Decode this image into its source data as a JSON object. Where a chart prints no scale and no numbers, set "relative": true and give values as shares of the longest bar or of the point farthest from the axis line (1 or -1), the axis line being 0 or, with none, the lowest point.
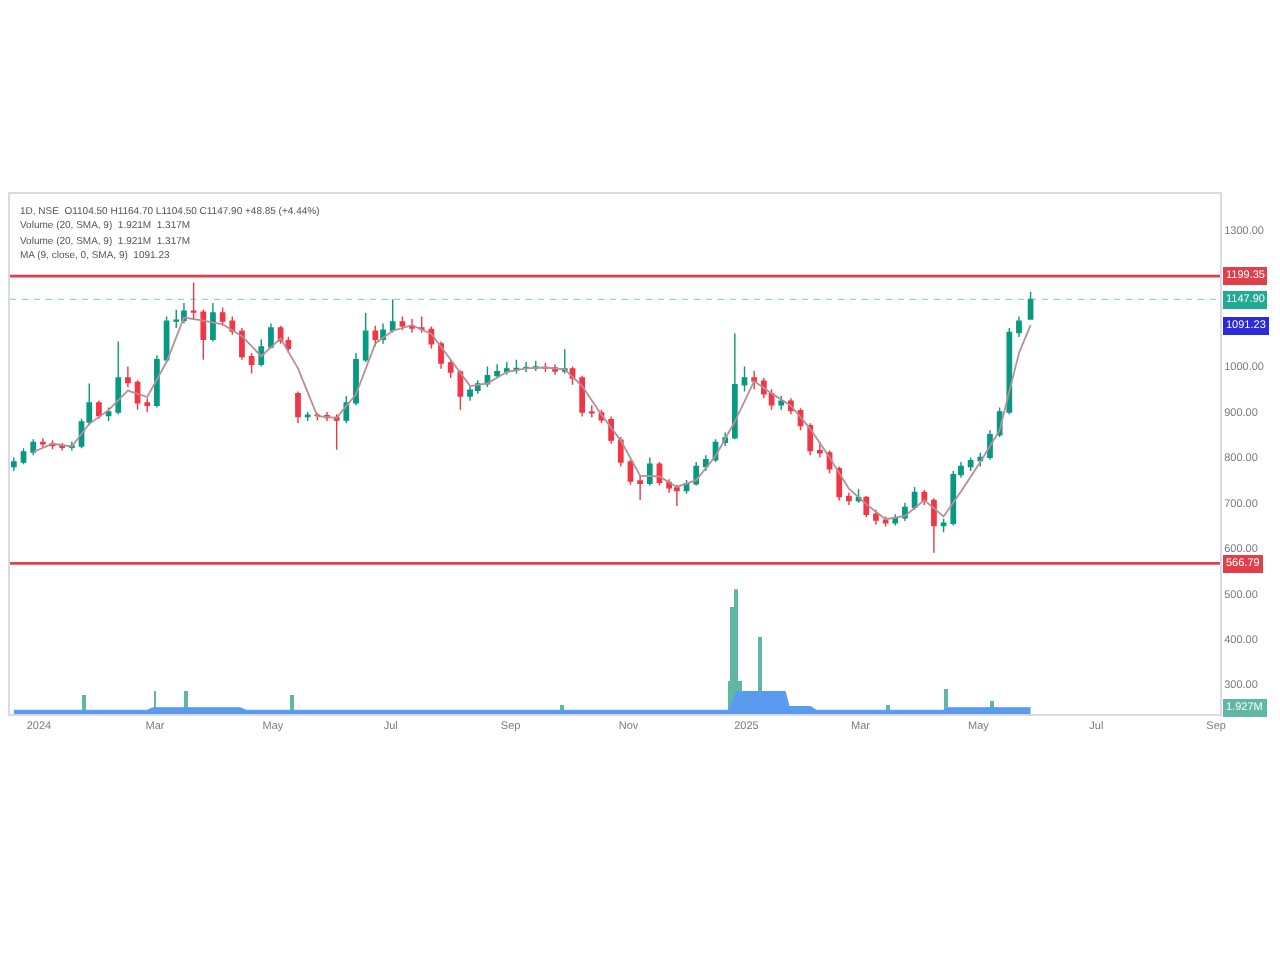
{
  "chart_data": [
    {
      "type": "candlestick",
      "x": [
        "2023-12-19",
        "2023-12-24",
        "2023-12-29",
        "2024-01-03",
        "2024-01-08",
        "2024-01-13",
        "2024-01-18",
        "2024-01-23",
        "2024-01-27",
        "2024-02-01",
        "2024-02-06",
        "2024-02-11",
        "2024-02-16",
        "2024-02-21",
        "2024-02-26",
        "2024-03-02",
        "2024-03-07",
        "2024-03-12",
        "2024-03-16",
        "2024-03-21",
        "2024-03-26",
        "2024-03-31",
        "2024-04-05",
        "2024-04-10",
        "2024-04-15",
        "2024-04-20",
        "2024-04-25",
        "2024-04-30",
        "2024-05-05",
        "2024-05-09",
        "2024-05-14",
        "2024-05-19",
        "2024-05-24",
        "2024-05-29",
        "2024-06-03",
        "2024-06-08",
        "2024-06-13",
        "2024-06-18",
        "2024-06-23",
        "2024-06-27",
        "2024-07-02",
        "2024-07-07",
        "2024-07-12",
        "2024-07-17",
        "2024-07-22",
        "2024-07-27",
        "2024-08-01",
        "2024-08-06",
        "2024-08-11",
        "2024-08-15",
        "2024-08-20",
        "2024-08-25",
        "2024-08-30",
        "2024-09-04",
        "2024-09-09",
        "2024-09-14",
        "2024-09-19",
        "2024-09-24",
        "2024-09-29",
        "2024-10-03",
        "2024-10-08",
        "2024-10-13",
        "2024-10-18",
        "2024-10-23",
        "2024-10-28",
        "2024-11-02",
        "2024-11-07",
        "2024-11-12",
        "2024-11-17",
        "2024-11-22",
        "2024-11-26",
        "2024-12-01",
        "2024-12-06",
        "2024-12-11",
        "2024-12-16",
        "2024-12-21",
        "2024-12-26",
        "2024-12-31",
        "2025-01-05",
        "2025-01-10",
        "2025-01-14",
        "2025-01-19",
        "2025-01-24",
        "2025-01-29",
        "2025-02-03",
        "2025-02-08",
        "2025-02-13",
        "2025-02-18",
        "2025-02-23",
        "2025-02-28",
        "2025-03-04",
        "2025-03-09",
        "2025-03-14",
        "2025-03-19",
        "2025-03-24",
        "2025-03-29",
        "2025-04-03",
        "2025-04-08",
        "2025-04-13",
        "2025-04-18",
        "2025-04-22",
        "2025-04-27",
        "2025-05-02",
        "2025-05-07",
        "2025-05-12",
        "2025-05-17",
        "2025-05-22",
        "2025-05-28"
      ],
      "ohlc": [
        [
          780,
          800,
          770,
          790
        ],
        [
          790,
          820,
          785,
          812
        ],
        [
          812,
          840,
          805,
          833
        ],
        [
          833,
          842,
          822,
          830
        ],
        [
          830,
          838,
          818,
          826
        ],
        [
          826,
          832,
          815,
          822
        ],
        [
          822,
          835,
          815,
          825
        ],
        [
          825,
          885,
          820,
          878
        ],
        [
          878,
          963,
          870,
          920
        ],
        [
          920,
          925,
          885,
          892
        ],
        [
          892,
          910,
          880,
          900
        ],
        [
          900,
          1055,
          895,
          975
        ],
        [
          975,
          1000,
          955,
          965
        ],
        [
          965,
          970,
          905,
          920
        ],
        [
          920,
          930,
          900,
          915
        ],
        [
          915,
          1025,
          910,
          1015
        ],
        [
          1015,
          1110,
          1010,
          1100
        ],
        [
          1100,
          1125,
          1085,
          1102
        ],
        [
          1102,
          1140,
          1095,
          1122
        ],
        [
          1122,
          1185,
          1105,
          1120
        ],
        [
          1120,
          1125,
          1015,
          1060
        ],
        [
          1060,
          1140,
          1055,
          1118
        ],
        [
          1118,
          1130,
          1090,
          1100
        ],
        [
          1100,
          1110,
          1070,
          1078
        ],
        [
          1078,
          1085,
          1015,
          1022
        ],
        [
          1022,
          1030,
          985,
          1005
        ],
        [
          1005,
          1060,
          1000,
          1043
        ],
        [
          1043,
          1095,
          1040,
          1085
        ],
        [
          1085,
          1090,
          1050,
          1057
        ],
        [
          1057,
          1065,
          1030,
          1040
        ],
        [
          940,
          945,
          875,
          890
        ],
        [
          890,
          900,
          880,
          893
        ],
        [
          893,
          898,
          882,
          892
        ],
        [
          892,
          900,
          880,
          888
        ],
        [
          888,
          895,
          817,
          882
        ],
        [
          882,
          935,
          875,
          920
        ],
        [
          920,
          1030,
          915,
          1015
        ],
        [
          1015,
          1118,
          1010,
          1078
        ],
        [
          1078,
          1090,
          1045,
          1060
        ],
        [
          1060,
          1095,
          1050,
          1080
        ],
        [
          1080,
          1148,
          1075,
          1098
        ],
        [
          1098,
          1110,
          1080,
          1090
        ],
        [
          1090,
          1105,
          1075,
          1085
        ],
        [
          1085,
          1110,
          1075,
          1082
        ],
        [
          1082,
          1088,
          1040,
          1050
        ],
        [
          1050,
          1055,
          995,
          1008
        ],
        [
          1008,
          1015,
          975,
          988
        ],
        [
          988,
          992,
          905,
          935
        ],
        [
          935,
          955,
          925,
          948
        ],
        [
          948,
          970,
          940,
          962
        ],
        [
          962,
          1000,
          955,
          980
        ],
        [
          980,
          1005,
          975,
          989
        ],
        [
          989,
          1010,
          982,
          995
        ],
        [
          993,
          1015,
          985,
          996
        ],
        [
          996,
          1010,
          988,
          998
        ],
        [
          997,
          1012,
          990,
          999
        ],
        [
          998,
          1008,
          988,
          997
        ],
        [
          997,
          1005,
          982,
          990
        ],
        [
          990,
          1038,
          985,
          995
        ],
        [
          995,
          1000,
          960,
          975
        ],
        [
          975,
          980,
          890,
          900
        ],
        [
          900,
          915,
          888,
          898
        ],
        [
          898,
          905,
          875,
          883
        ],
        [
          883,
          890,
          830,
          838
        ],
        [
          838,
          845,
          780,
          790
        ],
        [
          790,
          795,
          740,
          748
        ],
        [
          748,
          760,
          706,
          743
        ],
        [
          743,
          800,
          738,
          785
        ],
        [
          785,
          790,
          738,
          745
        ],
        [
          745,
          752,
          722,
          733
        ],
        [
          733,
          740,
          693,
          727
        ],
        [
          727,
          750,
          720,
          742
        ],
        [
          742,
          790,
          738,
          780
        ],
        [
          780,
          805,
          770,
          795
        ],
        [
          795,
          840,
          790,
          833
        ],
        [
          833,
          855,
          825,
          843
        ],
        [
          843,
          1073,
          840,
          960
        ],
        [
          960,
          1000,
          945,
          975
        ],
        [
          975,
          990,
          950,
          968
        ],
        [
          968,
          975,
          930,
          940
        ],
        [
          940,
          950,
          905,
          916
        ],
        [
          916,
          935,
          905,
          924
        ],
        [
          924,
          930,
          895,
          903
        ],
        [
          903,
          908,
          860,
          870
        ],
        [
          870,
          875,
          805,
          815
        ],
        [
          815,
          835,
          800,
          810
        ],
        [
          810,
          815,
          765,
          775
        ],
        [
          775,
          780,
          705,
          714
        ],
        [
          714,
          722,
          695,
          705
        ],
        [
          705,
          730,
          700,
          712
        ],
        [
          712,
          715,
          668,
          675
        ],
        [
          675,
          685,
          652,
          662
        ],
        [
          662,
          670,
          648,
          656
        ],
        [
          656,
          675,
          650,
          667
        ],
        [
          667,
          700,
          660,
          690
        ],
        [
          690,
          735,
          685,
          723
        ],
        [
          723,
          728,
          695,
          705
        ],
        [
          705,
          710,
          590,
          650
        ],
        [
          650,
          665,
          635,
          655
        ],
        [
          655,
          770,
          650,
          762
        ],
        [
          762,
          790,
          755,
          780
        ],
        [
          780,
          800,
          770,
          793
        ],
        [
          793,
          810,
          780,
          800
        ],
        [
          800,
          860,
          795,
          850
        ],
        [
          850,
          910,
          845,
          900
        ],
        [
          900,
          1085,
          895,
          1075
        ],
        [
          1075,
          1110,
          1065,
          1100
        ],
        [
          1104.5,
          1164.7,
          1104.5,
          1147.9
        ]
      ],
      "colors": [
        "#089981",
        "#089981",
        "#089981",
        "#f23645",
        "#f23645",
        "#f23645",
        "#089981",
        "#089981",
        "#089981",
        "#f23645",
        "#089981",
        "#089981",
        "#f23645",
        "#f23645",
        "#f23645",
        "#089981",
        "#089981",
        "#089981",
        "#089981",
        "#f23645",
        "#f23645",
        "#089981",
        "#f23645",
        "#f23645",
        "#f23645",
        "#f23645",
        "#089981",
        "#089981",
        "#f23645",
        "#f23645",
        "#f23645",
        "#089981",
        "#f23645",
        "#f23645",
        "#f23645",
        "#089981",
        "#089981",
        "#089981",
        "#f23645",
        "#089981",
        "#089981",
        "#f23645",
        "#f23645",
        "#f23645",
        "#f23645",
        "#f23645",
        "#f23645",
        "#f23645",
        "#089981",
        "#089981",
        "#089981",
        "#089981",
        "#089981",
        "#089981",
        "#089981",
        "#089981",
        "#f23645",
        "#f23645",
        "#089981",
        "#f23645",
        "#f23645",
        "#f23645",
        "#f23645",
        "#f23645",
        "#f23645",
        "#f23645",
        "#f23645",
        "#089981",
        "#f23645",
        "#f23645",
        "#f23645",
        "#089981",
        "#089981",
        "#089981",
        "#089981",
        "#089981",
        "#089981",
        "#089981",
        "#f23645",
        "#f23645",
        "#f23645",
        "#089981",
        "#f23645",
        "#f23645",
        "#f23645",
        "#f23645",
        "#f23645",
        "#f23645",
        "#f23645",
        "#089981",
        "#f23645",
        "#f23645",
        "#f23645",
        "#089981",
        "#089981",
        "#089981",
        "#f23645",
        "#f23645",
        "#089981",
        "#089981",
        "#089981",
        "#089981",
        "#089981",
        "#089981",
        "#089981",
        "#089981",
        "#089981",
        "#089981"
      ],
      "series": [
        {
          "type": "line",
          "color": "#b78f99",
          "x": [
            "2023-12-29",
            "2024-01-08",
            "2024-01-18",
            "2024-01-27",
            "2024-02-06",
            "2024-02-16",
            "2024-02-26",
            "2024-03-07",
            "2024-03-16",
            "2024-03-26",
            "2024-04-05",
            "2024-04-15",
            "2024-04-25",
            "2024-05-05",
            "2024-05-14",
            "2024-05-24",
            "2024-06-03",
            "2024-06-13",
            "2024-06-23",
            "2024-07-02",
            "2024-07-12",
            "2024-07-22",
            "2024-08-01",
            "2024-08-11",
            "2024-08-20",
            "2024-08-30",
            "2024-09-09",
            "2024-09-19",
            "2024-09-29",
            "2024-10-08",
            "2024-10-18",
            "2024-10-28",
            "2024-11-07",
            "2024-11-17",
            "2024-11-26",
            "2024-12-06",
            "2024-12-16",
            "2024-12-26",
            "2025-01-05",
            "2025-01-14",
            "2025-01-24",
            "2025-02-03",
            "2025-02-13",
            "2025-02-23",
            "2025-03-04",
            "2025-03-14",
            "2025-03-24",
            "2025-04-03",
            "2025-04-13",
            "2025-04-22",
            "2025-05-02",
            "2025-05-12",
            "2025-05-22",
            "2025-05-28"
          ],
          "values": [
            812,
            830,
            824,
            874,
            904,
            947,
            933,
            1010,
            1108,
            1101,
            1093,
            1067,
            1023,
            1062,
            996,
            891,
            887,
            939,
            1051,
            1079,
            1091,
            1072,
            1015,
            957,
            963,
            988,
            996,
            998,
            994,
            957,
            894,
            837,
            760,
            758,
            735,
            750,
            803,
            879,
            968,
            941,
            914,
            863,
            800,
            731,
            697,
            664,
            671,
            706,
            670,
            725,
            790,
            860,
            1030,
            1091.23
          ]
        }
      ],
      "xlim": [
        "2023-12-17",
        "2025-09-03"
      ],
      "xticks": [
        {
          "value": "2024-01-01",
          "label": "2024"
        },
        {
          "value": "2024-03-01",
          "label": "Mar"
        },
        {
          "value": "2024-05-01",
          "label": "May"
        },
        {
          "value": "2024-07-01",
          "label": "Jul"
        },
        {
          "value": "2024-09-01",
          "label": "Sep"
        },
        {
          "value": "2024-11-01",
          "label": "Nov"
        },
        {
          "value": "2025-01-01",
          "label": "2025"
        },
        {
          "value": "2025-03-01",
          "label": "Mar"
        },
        {
          "value": "2025-05-01",
          "label": "May"
        },
        {
          "value": "2025-07-01",
          "label": "Jul"
        },
        {
          "value": "2025-09-01",
          "label": "Sep"
        }
      ],
      "ylim": [
        235,
        1380
      ],
      "yticks": [
        {
          "value": 300,
          "label": "300.00"
        },
        {
          "value": 400,
          "label": "400.00"
        },
        {
          "value": 500,
          "label": "500.00"
        },
        {
          "value": 600,
          "label": "600.00"
        },
        {
          "value": 700,
          "label": "700.00"
        },
        {
          "value": 800,
          "label": "800.00"
        },
        {
          "value": 900,
          "label": "900.00"
        },
        {
          "value": 1000,
          "label": "1000.00"
        },
        {
          "value": 1300,
          "label": "1300.00"
        }
      ],
      "ref_lines": [
        {
          "axis": "y",
          "value": 1199.35,
          "label": "1199.35",
          "color": "#e0404c"
        },
        {
          "axis": "y",
          "value": 1147.9,
          "label": "1147.90",
          "color": "#22ab94",
          "line_style": "dotted"
        },
        {
          "axis": "y",
          "value": 566.79,
          "label": "566.79",
          "color": "#e0404c"
        }
      ],
      "annotations": [
        "1D, NSE  O1104.50 H1164.70 L1104.50 C1147.90 +48.85 (+4.44%)",
        "Volume (20, SMA, 9)  1.921M  1.317M",
        "Volume (20, SMA, 9)  1.921M  1.317M",
        "MA (9, close, 0, SMA, 9)  1091.23",
        {
          "text": "1091.23",
          "y": 1091.23
        }
      ]
    },
    {
      "type": "bar",
      "relative": true,
      "series": [
        {
          "type": "bar",
          "color": "#5fb8a5",
          "x": [
            "2024-01-24",
            "2024-03-01",
            "2024-03-17",
            "2024-05-11",
            "2024-09-28",
            "2024-12-23",
            "2024-12-25",
            "2024-12-27",
            "2024-12-29",
            "2025-01-08",
            "2025-03-15",
            "2025-04-14",
            "2025-05-08"
          ],
          "values": [
            0.15,
            0.19,
            0.19,
            0.15,
            0.07,
            0.26,
            0.85,
            1.0,
            0.26,
            0.62,
            0.07,
            0.2,
            0.1
          ]
        },
        {
          "type": "area",
          "color": "#5b9bef",
          "x": [
            "2023-12-19",
            "2024-02-26",
            "2024-02-29",
            "2024-04-14",
            "2024-04-17",
            "2024-12-23",
            "2024-12-27",
            "2025-01-21",
            "2025-01-23",
            "2025-02-03",
            "2025-02-06",
            "2025-04-13",
            "2025-04-15",
            "2025-05-28"
          ],
          "values": [
            0.03,
            0.03,
            0.05,
            0.05,
            0.03,
            0.03,
            0.18,
            0.18,
            0.06,
            0.06,
            0.03,
            0.03,
            0.05,
            0.05
          ]
        }
      ],
      "xlim": [
        "2023-12-17",
        "2025-09-03"
      ],
      "tick_labels": false,
      "annotations": [
        {
          "text": "1.927M",
          "y": 0.05
        }
      ]
    }
  ]
}
